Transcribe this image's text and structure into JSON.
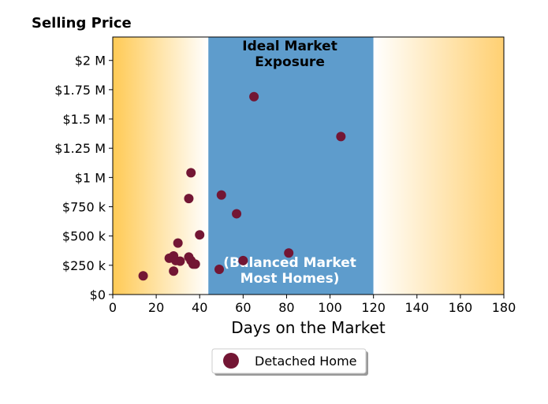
{
  "chart_data": {
    "type": "scatter",
    "title": "Selling Price",
    "xlabel": "Days on the Market",
    "ylabel": "",
    "xlim": [
      0,
      180
    ],
    "ylim": [
      0,
      2200000
    ],
    "x_ticks": [
      0,
      20,
      40,
      60,
      80,
      100,
      120,
      140,
      160,
      180
    ],
    "x_tick_labels": [
      "0",
      "20",
      "40",
      "60",
      "80",
      "100",
      "120",
      "140",
      "160",
      "180"
    ],
    "y_ticks": [
      0,
      250000,
      500000,
      750000,
      1000000,
      1250000,
      1500000,
      1750000,
      2000000
    ],
    "y_tick_labels": [
      "$0",
      "$250 k",
      "$500 k",
      "$750 k",
      "$1 M",
      "$1.25 M",
      "$1.5 M",
      "$1.75 M",
      "$2 M"
    ],
    "grid": false,
    "legend_position": "bottom-center",
    "regions": [
      {
        "x_start": 0,
        "x_end": 44,
        "fill": "gradient-orange-to-white",
        "color": "#ffca55"
      },
      {
        "x_start": 44,
        "x_end": 120,
        "fill": "solid",
        "color": "#5e9ccc"
      },
      {
        "x_start": 120,
        "x_end": 180,
        "fill": "gradient-white-to-orange",
        "color": "#ffd072"
      }
    ],
    "annotations": [
      {
        "lines": [
          "Ideal Market",
          "Exposure"
        ],
        "x": 81.5,
        "y_position": "top",
        "color": "#000000"
      },
      {
        "lines": [
          "(Balanced Market",
          "Most Homes)"
        ],
        "x": 81.5,
        "y_position": "bottom",
        "color": "#ffffff"
      }
    ],
    "series": [
      {
        "name": "Detached Home",
        "color": "#731634",
        "points": [
          {
            "x": 14,
            "y": 160000
          },
          {
            "x": 26,
            "y": 310000
          },
          {
            "x": 28,
            "y": 330000
          },
          {
            "x": 28,
            "y": 200000
          },
          {
            "x": 29,
            "y": 290000
          },
          {
            "x": 30,
            "y": 440000
          },
          {
            "x": 31,
            "y": 285000
          },
          {
            "x": 35,
            "y": 320000
          },
          {
            "x": 36,
            "y": 290000
          },
          {
            "x": 37,
            "y": 260000
          },
          {
            "x": 38,
            "y": 260000
          },
          {
            "x": 35,
            "y": 820000
          },
          {
            "x": 36,
            "y": 1040000
          },
          {
            "x": 40,
            "y": 510000
          },
          {
            "x": 49,
            "y": 215000
          },
          {
            "x": 50,
            "y": 850000
          },
          {
            "x": 57,
            "y": 690000
          },
          {
            "x": 60,
            "y": 290000
          },
          {
            "x": 65,
            "y": 1690000
          },
          {
            "x": 81,
            "y": 355000
          },
          {
            "x": 105,
            "y": 1350000
          }
        ]
      }
    ]
  }
}
